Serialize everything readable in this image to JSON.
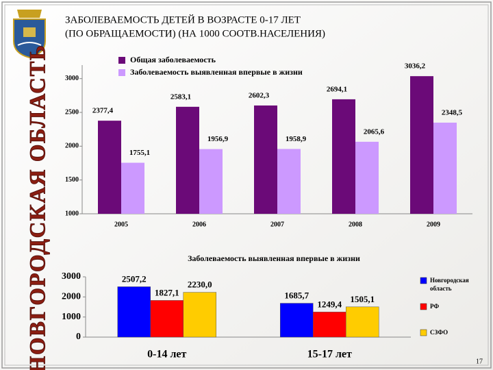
{
  "title": [
    "ЗАБОЛЕВАЕМОСТЬ ДЕТЕЙ В ВОЗРАСТЕ 0-17 ЛЕТ",
    "(ПО ОБРАЩАЕМОСТИ) (НА 1000 СООТВ.НАСЕЛЕНИЯ)"
  ],
  "sidebar_label": "НОВГОРОДСКАЯ ОБЛАСТЬ",
  "page_number": "17",
  "chart_data": [
    {
      "type": "bar",
      "categories": [
        "2005",
        "2006",
        "2007",
        "2008",
        "2009"
      ],
      "series": [
        {
          "name": "Общая заболеваемость",
          "color": "#6b0a78",
          "values": [
            2377.4,
            2583.1,
            2602.3,
            2694.1,
            3036.2
          ],
          "value_labels": [
            "2377,4",
            "2583,1",
            "2602,3",
            "2694,1",
            "3036,2"
          ]
        },
        {
          "name": "Заболеваемость выявленная впервые в жизни",
          "color": "#cc99ff",
          "values": [
            1755.1,
            1956.9,
            1958.9,
            2065.6,
            2348.5
          ],
          "value_labels": [
            "1755,1",
            "1956,9",
            "1958,9",
            "2065,6",
            "2348,5"
          ]
        }
      ],
      "ylim": [
        1000,
        3200
      ],
      "yticks": [
        1000,
        1500,
        2000,
        2500,
        3000
      ],
      "legend": "top"
    },
    {
      "type": "bar",
      "title": "Заболеваемость выявленная впервые в жизни",
      "categories": [
        "0-14 лет",
        "15-17 лет"
      ],
      "series": [
        {
          "name": "Новгородская область",
          "color": "#0000ff",
          "values": [
            2507.2,
            1685.7
          ],
          "value_labels": [
            "2507,2",
            "1685,7"
          ]
        },
        {
          "name": "РФ",
          "color": "#ff0000",
          "values": [
            1827.1,
            1249.4
          ],
          "value_labels": [
            "1827,1",
            "1249,4"
          ]
        },
        {
          "name": "СЗФО",
          "color": "#ffcc00",
          "values": [
            2230.0,
            1505.1
          ],
          "value_labels": [
            "2230,0",
            "1505,1"
          ]
        }
      ],
      "ylim": [
        0,
        3000
      ],
      "yticks": [
        0,
        1000,
        2000,
        3000
      ],
      "legend": "right"
    }
  ]
}
